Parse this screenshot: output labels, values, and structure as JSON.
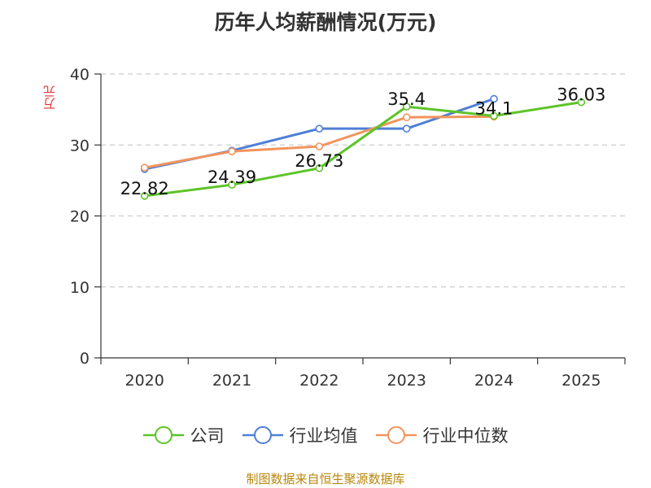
{
  "chart_data": {
    "type": "line",
    "title": "历年人均薪酬情况(万元)",
    "ylabel": "万元",
    "xlabel": "",
    "categories": [
      "2020",
      "2021",
      "2022",
      "2023",
      "2024",
      "2025"
    ],
    "ylim": [
      0,
      40
    ],
    "yticks": [
      0,
      10,
      20,
      30,
      40
    ],
    "grid": true,
    "legend_position": "bottom",
    "series": [
      {
        "name": "公司",
        "color": "#5cc428",
        "values": [
          22.82,
          24.39,
          26.73,
          35.4,
          34.1,
          36.03
        ],
        "labels": [
          "22.82",
          "24.39",
          "26.73",
          "35.4",
          "34.1",
          "36.03"
        ]
      },
      {
        "name": "行业均值",
        "color": "#4f7fd6",
        "values": [
          26.6,
          29.2,
          32.3,
          32.3,
          36.5,
          null
        ]
      },
      {
        "name": "行业中位数",
        "color": "#f2945c",
        "values": [
          26.8,
          29.1,
          29.8,
          33.9,
          34.0,
          null
        ]
      }
    ]
  },
  "source": "制图数据来自恒生聚源数据库"
}
